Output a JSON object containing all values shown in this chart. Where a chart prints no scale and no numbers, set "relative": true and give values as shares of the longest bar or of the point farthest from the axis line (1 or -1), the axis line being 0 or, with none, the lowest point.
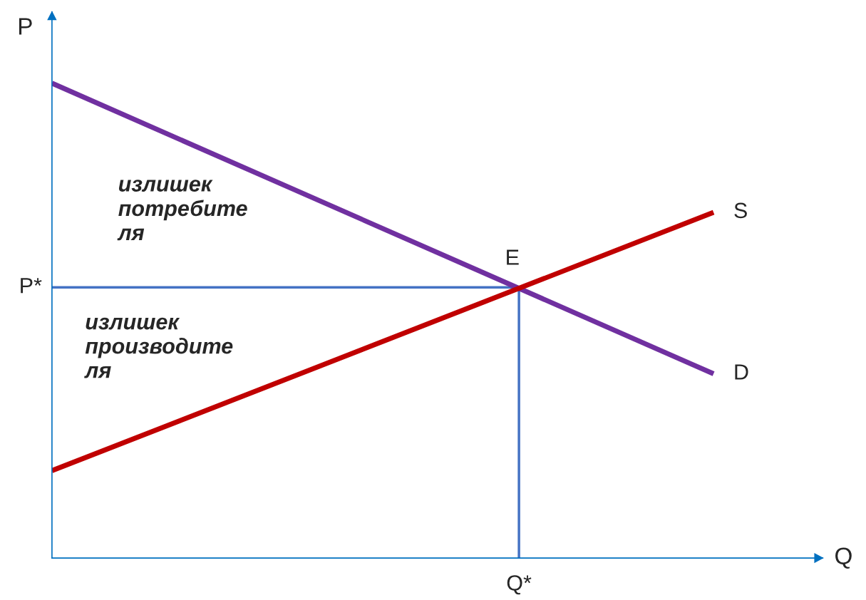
{
  "chart_data": {
    "type": "line",
    "relative": true,
    "xlabel": "Q",
    "ylabel": "P",
    "categories": [
      null,
      null
    ],
    "series": [
      {
        "name": "D",
        "color": "#7030a0",
        "values": [
          1,
          0.388
        ]
      },
      {
        "name": "S",
        "color": "#c00000",
        "values": [
          0.184,
          0.728
        ]
      }
    ],
    "ref_lines": [
      {
        "axis": "y",
        "value": 0.57,
        "label": "P*",
        "color": "#4472c4"
      }
    ],
    "annotations": [
      "E",
      "Q*",
      "излишек\nпотребите\nля",
      "излишек\nпроизводите\nля"
    ],
    "legend": false,
    "line_style": "solid",
    "marker": "none"
  }
}
